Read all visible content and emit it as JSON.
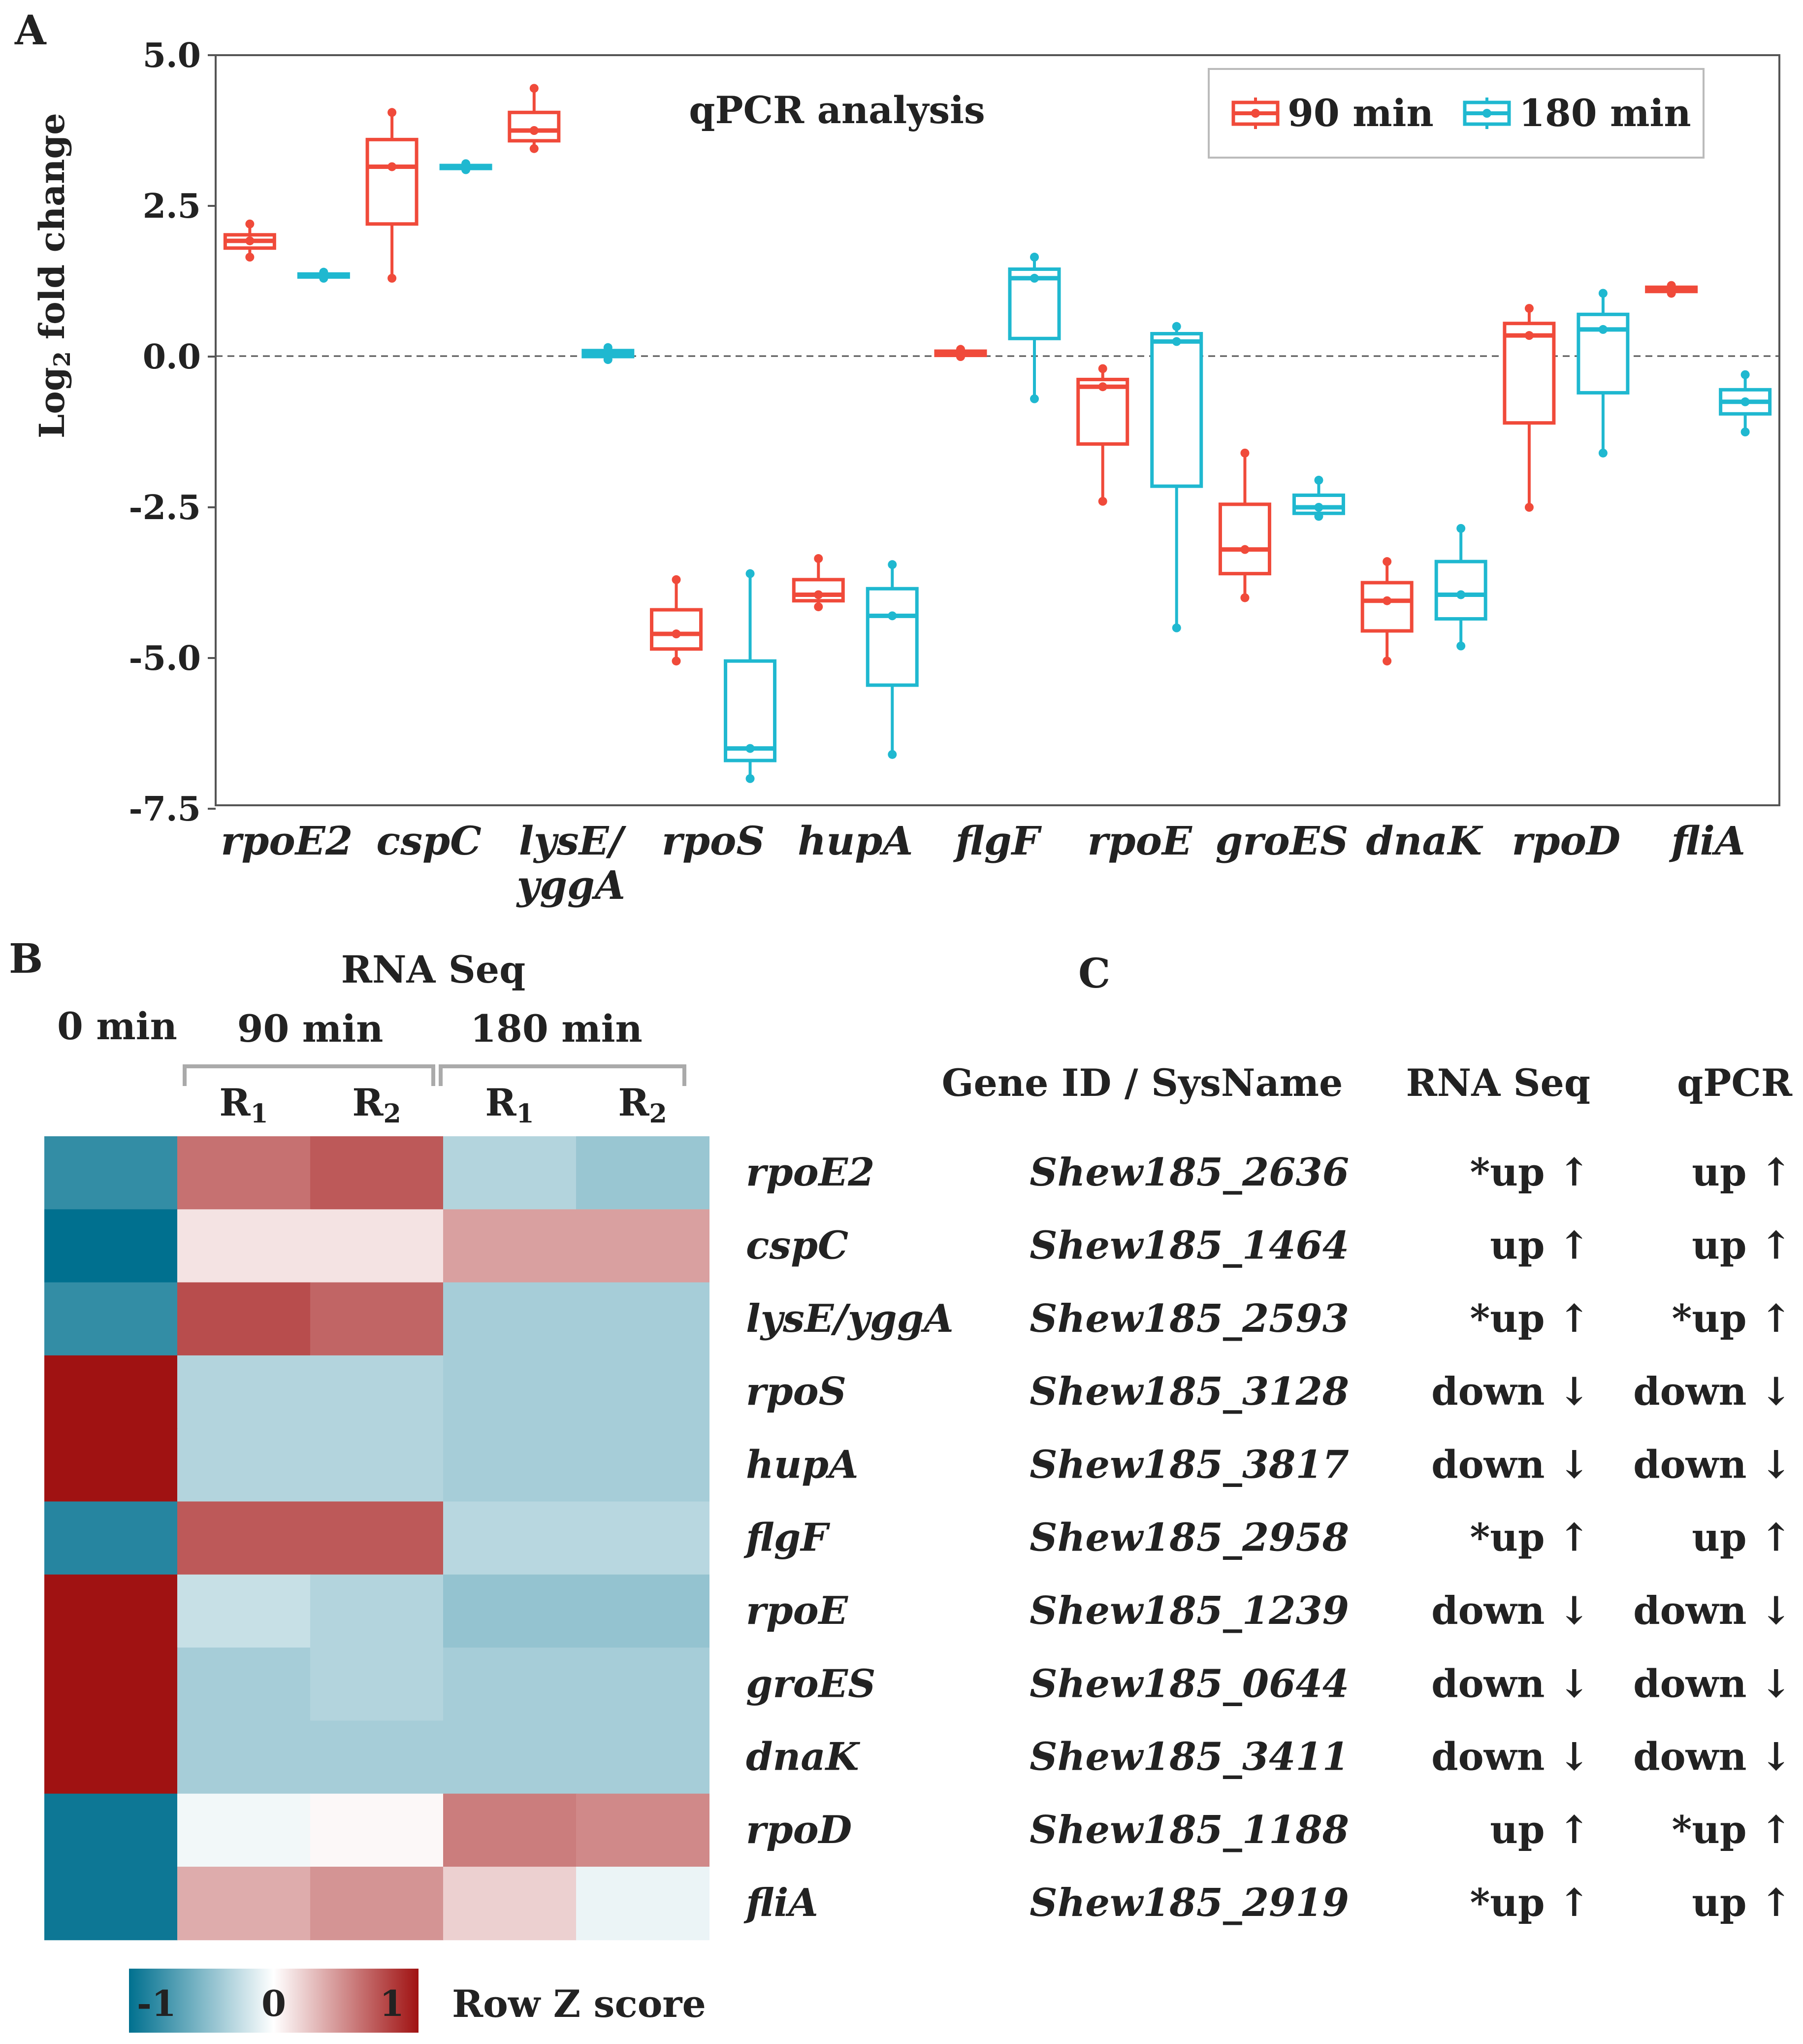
{
  "panel_a": {
    "label": "A",
    "chart_data": {
      "type": "box",
      "title": "qPCR analysis",
      "xlabel": "",
      "ylabel": "Log₂ fold change",
      "ylabel_main": "Log",
      "ylabel_sub": "2",
      "ylabel_rest": "fold change",
      "ylim": [
        -7.5,
        5.0
      ],
      "yticks": [
        5.0,
        2.5,
        0.0,
        -2.5,
        -5.0,
        -7.5
      ],
      "ytick_labels": [
        "5.0",
        "2.5",
        "0.0",
        "-2.5",
        "-5.0",
        "-7.5"
      ],
      "reference_line": 0,
      "categories": [
        "rpoE2",
        "cspC",
        "lysE/yggA",
        "rpoS",
        "hupA",
        "flgF",
        "rpoE",
        "groES",
        "dnaK",
        "rpoD",
        "fliA"
      ],
      "category_lines": [
        [
          "rpoE2"
        ],
        [
          "cspC"
        ],
        [
          "lysE/",
          "yggA"
        ],
        [
          "rpoS"
        ],
        [
          "hupA"
        ],
        [
          "flgF"
        ],
        [
          "rpoE"
        ],
        [
          "groES"
        ],
        [
          "dnaK"
        ],
        [
          "rpoD"
        ],
        [
          "fliA"
        ]
      ],
      "legend": {
        "position": "top-right"
      },
      "series": [
        {
          "name": "90 min",
          "color": "#f04a3a",
          "boxes": [
            {
              "min": 1.65,
              "q1": 1.8,
              "median": 1.92,
              "q3": 2.02,
              "max": 2.2
            },
            {
              "min": 1.3,
              "q1": 2.2,
              "median": 3.15,
              "q3": 3.6,
              "max": 4.05
            },
            {
              "min": 3.45,
              "q1": 3.58,
              "median": 3.75,
              "q3": 4.05,
              "max": 4.45
            },
            {
              "min": -5.05,
              "q1": -4.85,
              "median": -4.6,
              "q3": -4.2,
              "max": -3.7
            },
            {
              "min": -4.15,
              "q1": -4.05,
              "median": -3.95,
              "q3": -3.7,
              "max": -3.35
            },
            {
              "min": 0.0,
              "q1": 0.02,
              "median": 0.05,
              "q3": 0.09,
              "max": 0.12
            },
            {
              "min": -2.4,
              "q1": -1.45,
              "median": -0.5,
              "q3": -0.38,
              "max": -0.2
            },
            {
              "min": -4.0,
              "q1": -3.6,
              "median": -3.2,
              "q3": -2.45,
              "max": -1.6
            },
            {
              "min": -5.05,
              "q1": -4.55,
              "median": -4.05,
              "q3": -3.75,
              "max": -3.4
            },
            {
              "min": -2.5,
              "q1": -1.1,
              "median": 0.35,
              "q3": 0.55,
              "max": 0.8
            },
            {
              "min": 1.05,
              "q1": 1.08,
              "median": 1.12,
              "q3": 1.15,
              "max": 1.18
            }
          ]
        },
        {
          "name": "180 min",
          "color": "#1fb8d0",
          "boxes": [
            {
              "min": 1.3,
              "q1": 1.32,
              "median": 1.35,
              "q3": 1.37,
              "max": 1.4
            },
            {
              "min": 3.1,
              "q1": 3.12,
              "median": 3.15,
              "q3": 3.17,
              "max": 3.2
            },
            {
              "min": -0.05,
              "q1": 0.0,
              "median": 0.05,
              "q3": 0.1,
              "max": 0.15
            },
            {
              "min": -7.0,
              "q1": -6.7,
              "median": -6.5,
              "q3": -5.05,
              "max": -3.6
            },
            {
              "min": -6.6,
              "q1": -5.45,
              "median": -4.3,
              "q3": -3.85,
              "max": -3.45
            },
            {
              "min": -0.7,
              "q1": 0.3,
              "median": 1.3,
              "q3": 1.45,
              "max": 1.65
            },
            {
              "min": -4.5,
              "q1": -2.15,
              "median": 0.25,
              "q3": 0.38,
              "max": 0.5
            },
            {
              "min": -2.65,
              "q1": -2.6,
              "median": -2.5,
              "q3": -2.3,
              "max": -2.05
            },
            {
              "min": -4.8,
              "q1": -4.35,
              "median": -3.95,
              "q3": -3.4,
              "max": -2.85
            },
            {
              "min": -1.6,
              "q1": -0.6,
              "median": 0.45,
              "q3": 0.7,
              "max": 1.05
            },
            {
              "min": -1.25,
              "q1": -0.95,
              "median": -0.75,
              "q3": -0.55,
              "max": -0.3
            }
          ]
        }
      ]
    }
  },
  "panel_b": {
    "label": "B",
    "chart_data": {
      "type": "heatmap",
      "title": "RNA Seq",
      "group_labels": [
        "0 min",
        "90 min",
        "180 min"
      ],
      "replicates": [
        {
          "main": "R",
          "sub": "1"
        },
        {
          "main": "R",
          "sub": "2"
        },
        {
          "main": "R",
          "sub": "1"
        },
        {
          "main": "R",
          "sub": "2"
        }
      ],
      "row_labels": [
        "rpoE2",
        "cspC",
        "lysE/yggA",
        "rpoS",
        "hupA",
        "flgF",
        "rpoE",
        "groES",
        "dnaK",
        "rpoD",
        "fliA"
      ],
      "columns": [
        "0 min",
        "90 min R1",
        "90 min R2",
        "180 min R1",
        "180 min R2"
      ],
      "values": [
        [
          -0.8,
          0.6,
          0.7,
          -0.3,
          -0.4
        ],
        [
          -1.0,
          0.12,
          0.12,
          0.4,
          0.4
        ],
        [
          -0.8,
          0.75,
          0.65,
          -0.35,
          -0.35
        ],
        [
          1.0,
          -0.3,
          -0.3,
          -0.35,
          -0.35
        ],
        [
          1.0,
          -0.3,
          -0.3,
          -0.35,
          -0.35
        ],
        [
          -0.85,
          0.7,
          0.7,
          -0.28,
          -0.28
        ],
        [
          1.0,
          -0.22,
          -0.3,
          -0.42,
          -0.42
        ],
        [
          1.0,
          -0.35,
          -0.3,
          -0.35,
          -0.35
        ],
        [
          1.0,
          -0.35,
          -0.35,
          -0.35,
          -0.35
        ],
        [
          -0.95,
          -0.05,
          0.03,
          0.55,
          0.5
        ],
        [
          -0.95,
          0.35,
          0.45,
          0.2,
          -0.08
        ]
      ],
      "colorbar": {
        "label": "Row Z score",
        "ticks": [
          -1,
          0,
          1
        ],
        "tick_labels": [
          "-1",
          "0",
          "1"
        ],
        "low_color": "#00708f",
        "mid_color": "#ffffff",
        "high_color": "#a01212"
      }
    }
  },
  "panel_c": {
    "label": "C",
    "headers": [
      "Gene ID / SysName",
      "RNA Seq",
      "qPCR"
    ],
    "rows": [
      {
        "id": "Shew185_2636",
        "rnaseq": "*up ↑",
        "qpcr": "up ↑"
      },
      {
        "id": "Shew185_1464",
        "rnaseq": "up ↑",
        "qpcr": "up ↑"
      },
      {
        "id": "Shew185_2593",
        "rnaseq": "*up ↑",
        "qpcr": "*up ↑"
      },
      {
        "id": "Shew185_3128",
        "rnaseq": "down ↓",
        "qpcr": "down ↓"
      },
      {
        "id": "Shew185_3817",
        "rnaseq": "down ↓",
        "qpcr": "down ↓"
      },
      {
        "id": "Shew185_2958",
        "rnaseq": "*up ↑",
        "qpcr": "up ↑"
      },
      {
        "id": "Shew185_1239",
        "rnaseq": "down ↓",
        "qpcr": "down ↓"
      },
      {
        "id": "Shew185_0644",
        "rnaseq": "down ↓",
        "qpcr": "down ↓"
      },
      {
        "id": "Shew185_3411",
        "rnaseq": "down ↓",
        "qpcr": "down ↓"
      },
      {
        "id": "Shew185_1188",
        "rnaseq": "up ↑",
        "qpcr": "*up ↑"
      },
      {
        "id": "Shew185_2919",
        "rnaseq": "*up ↑",
        "qpcr": "up ↑"
      }
    ]
  }
}
